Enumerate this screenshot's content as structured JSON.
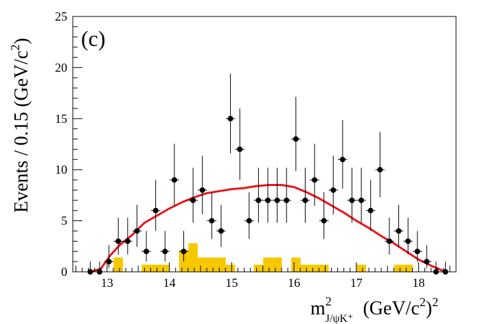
{
  "chart_data": {
    "type": "scatter",
    "panel_label": "(c)",
    "ylabel": "Events / 0.15 (GeV/c²)",
    "ylabel_main": "Events / 0.15 (GeV/c",
    "ylabel_sup": "2",
    "ylabel_end": ")",
    "xlabel_m": "m",
    "xlabel_sup": "2",
    "xlabel_sub": "J/ψK⁺",
    "xlabel_unit": "(GeV/c",
    "xlabel_unit_sup": "2",
    "xlabel_unit_end": ")",
    "xlabel_unit_exp": "2",
    "xlim": [
      12.45,
      18.6
    ],
    "ylim": [
      0,
      25
    ],
    "x_ticks": [
      "13",
      "14",
      "15",
      "16",
      "17",
      "18"
    ],
    "y_ticks": [
      "0",
      "5",
      "10",
      "15",
      "20",
      "25"
    ],
    "grid": false,
    "bin_width": 0.15,
    "series": [
      {
        "kind": "data-points",
        "x": [
          12.73,
          12.88,
          13.03,
          13.18,
          13.33,
          13.48,
          13.63,
          13.78,
          13.93,
          14.08,
          14.23,
          14.38,
          14.53,
          14.68,
          14.83,
          14.98,
          15.13,
          15.28,
          15.43,
          15.58,
          15.73,
          15.88,
          16.03,
          16.18,
          16.33,
          16.48,
          16.63,
          16.78,
          16.93,
          17.08,
          17.23,
          17.38,
          17.53,
          17.68,
          17.83,
          17.98,
          18.13,
          18.28,
          18.43
        ],
        "y": [
          0,
          0,
          1,
          3,
          3,
          4,
          2,
          6,
          2,
          9,
          2,
          7,
          8,
          5,
          4,
          15,
          12,
          5,
          7,
          7,
          7,
          7,
          13,
          7,
          9,
          5,
          8,
          11,
          7,
          7,
          6,
          10,
          3,
          4,
          3,
          2,
          1,
          0,
          0
        ]
      },
      {
        "kind": "fit-curve",
        "color": "#e8141c",
        "x": [
          12.73,
          12.9,
          13.05,
          13.2,
          13.4,
          13.6,
          13.8,
          14.0,
          14.2,
          14.4,
          14.6,
          14.8,
          15.0,
          15.2,
          15.4,
          15.6,
          15.8,
          16.0,
          16.2,
          16.4,
          16.6,
          16.8,
          17.0,
          17.2,
          17.4,
          17.6,
          17.8,
          18.0,
          18.2,
          18.43
        ],
        "y": [
          0,
          0.3,
          1.6,
          2.6,
          3.6,
          4.8,
          5.5,
          6.2,
          6.8,
          7.3,
          7.7,
          7.9,
          8.1,
          8.2,
          8.4,
          8.5,
          8.5,
          8.3,
          7.8,
          7.2,
          6.5,
          5.8,
          5.0,
          4.3,
          3.5,
          2.8,
          2.0,
          1.2,
          0.6,
          0
        ]
      },
      {
        "kind": "background-histogram",
        "color": "#f7c800",
        "x": [
          12.73,
          12.88,
          13.03,
          13.18,
          13.33,
          13.48,
          13.63,
          13.78,
          13.93,
          14.08,
          14.23,
          14.38,
          14.53,
          14.68,
          14.83,
          14.98,
          15.13,
          15.28,
          15.43,
          15.58,
          15.73,
          15.88,
          16.03,
          16.18,
          16.33,
          16.48,
          16.63,
          16.78,
          16.93,
          17.08,
          17.23,
          17.38,
          17.53,
          17.68,
          17.83,
          17.98,
          18.13,
          18.28,
          18.43
        ],
        "y": [
          0,
          0,
          0,
          1.4,
          0,
          0,
          0.7,
          0.7,
          0.7,
          0,
          2.1,
          2.8,
          1.4,
          1.4,
          1.4,
          0.7,
          0,
          0,
          0.7,
          1.4,
          1.4,
          0,
          1.4,
          0.7,
          0.7,
          0.7,
          0,
          0,
          0,
          0.7,
          0,
          0,
          0,
          0.7,
          0.7,
          0,
          0,
          0,
          0
        ]
      }
    ]
  }
}
